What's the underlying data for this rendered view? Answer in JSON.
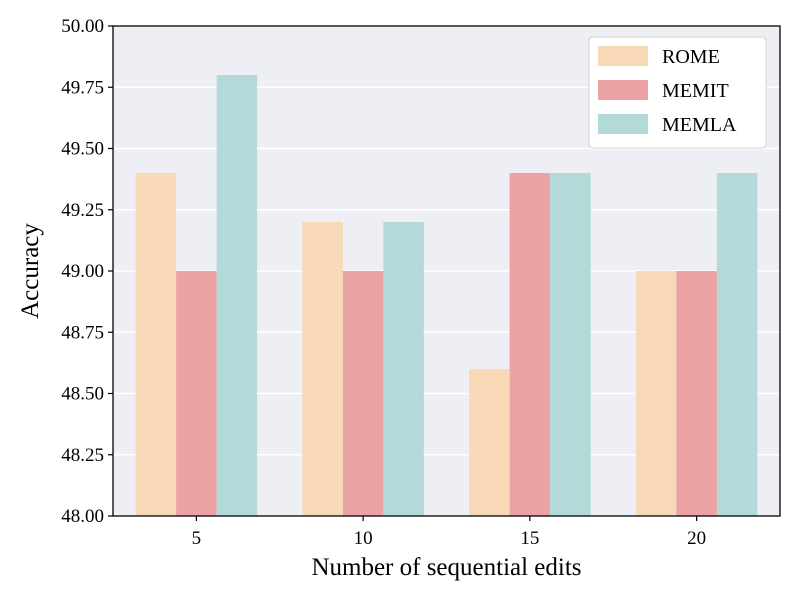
{
  "chart_data": {
    "type": "bar",
    "title": "",
    "xlabel": "Number of sequential edits",
    "ylabel": "Accuracy",
    "categories": [
      "5",
      "10",
      "15",
      "20"
    ],
    "ylim": [
      48.0,
      50.0
    ],
    "yticks": [
      "48.00",
      "48.25",
      "48.50",
      "48.75",
      "49.00",
      "49.25",
      "49.50",
      "49.75",
      "50.00"
    ],
    "grid": true,
    "legend_position": "top-right",
    "series": [
      {
        "name": "ROME",
        "color": "#f7d8b7",
        "values": [
          49.4,
          49.2,
          48.6,
          49.0
        ]
      },
      {
        "name": "MEMIT",
        "color": "#eba3a6",
        "values": [
          49.0,
          49.0,
          49.4,
          49.0
        ]
      },
      {
        "name": "MEMLA",
        "color": "#b2dad8",
        "values": [
          49.8,
          49.2,
          49.4,
          49.4
        ]
      }
    ]
  }
}
